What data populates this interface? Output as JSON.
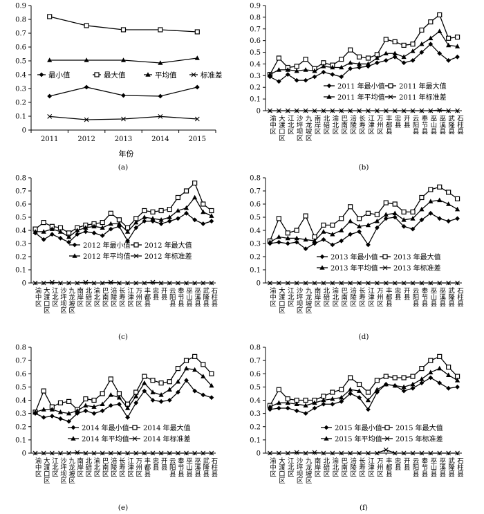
{
  "chart_data": [
    {
      "panel": "(a)",
      "type": "line",
      "xlabel": "年份",
      "ylabel": "",
      "ylim": [
        0,
        0.9
      ],
      "yticks": [
        "0",
        "0.1",
        "0.2",
        "0.3",
        "0.4",
        "0.5",
        "0.6",
        "0.7",
        "0.8",
        "0.9"
      ],
      "categories": [
        "2011",
        "2012",
        "2013",
        "2014",
        "2015"
      ],
      "legend_placement": "middle",
      "series": [
        {
          "name": "最小值",
          "marker": "diamond",
          "values": [
            0.245,
            0.31,
            0.25,
            0.245,
            0.31
          ]
        },
        {
          "name": "最大值",
          "marker": "square",
          "values": [
            0.82,
            0.755,
            0.725,
            0.725,
            0.71
          ]
        },
        {
          "name": "平均值",
          "marker": "triangle",
          "values": [
            0.505,
            0.505,
            0.505,
            0.485,
            0.52
          ]
        },
        {
          "name": "标准差",
          "marker": "x",
          "values": [
            0.098,
            0.075,
            0.08,
            0.098,
            0.08
          ]
        }
      ]
    },
    {
      "panel": "(b)",
      "type": "line",
      "ylim": [
        0,
        0.9
      ],
      "yticks": [
        "0",
        "0.1",
        "0.2",
        "0.3",
        "0.4",
        "0.5",
        "0.6",
        "0.7",
        "0.8",
        "0.9"
      ],
      "categories": [
        "渝中区",
        "大渡口区",
        "江北区",
        "沙坪坝区",
        "九龙坡区",
        "南岸区",
        "北碚区",
        "渝北区",
        "巴南区",
        "涪陵区",
        "长寿区",
        "江津区",
        "万州区",
        "丰都县",
        "忠县",
        "开县",
        "云阳县",
        "奉节县",
        "巫山县",
        "巫溪县",
        "武隆县",
        "石柱县"
      ],
      "legend_placement": "middle-right",
      "series": [
        {
          "name": "2011 年最小值",
          "marker": "diamond",
          "values": [
            0.29,
            0.25,
            0.31,
            0.26,
            0.26,
            0.29,
            0.33,
            0.31,
            0.29,
            0.36,
            0.37,
            0.38,
            0.41,
            0.43,
            0.46,
            0.41,
            0.43,
            0.5,
            0.57,
            0.49,
            0.43,
            0.46
          ]
        },
        {
          "name": "2011 年最大值",
          "marker": "square",
          "values": [
            0.31,
            0.45,
            0.37,
            0.38,
            0.44,
            0.36,
            0.41,
            0.39,
            0.44,
            0.52,
            0.46,
            0.45,
            0.48,
            0.61,
            0.59,
            0.56,
            0.57,
            0.69,
            0.76,
            0.82,
            0.62,
            0.63
          ]
        },
        {
          "name": "2011 年平均值",
          "marker": "triangle",
          "values": [
            0.31,
            0.35,
            0.35,
            0.34,
            0.35,
            0.34,
            0.38,
            0.37,
            0.37,
            0.41,
            0.4,
            0.4,
            0.45,
            0.49,
            0.49,
            0.46,
            0.51,
            0.57,
            0.62,
            0.68,
            0.56,
            0.55
          ]
        },
        {
          "name": "2011 年标准差",
          "marker": "x",
          "values": [
            0,
            0,
            0,
            0,
            0,
            0,
            0,
            0,
            0,
            0,
            0,
            0,
            0,
            0,
            0,
            0,
            0,
            0,
            0,
            0.005,
            0,
            0
          ]
        }
      ]
    },
    {
      "panel": "(c)",
      "type": "line",
      "ylim": [
        0,
        0.8
      ],
      "yticks": [
        "0",
        "0.1",
        "0.2",
        "0.3",
        "0.4",
        "0.5",
        "0.6",
        "0.7",
        "0.8"
      ],
      "categories": [
        "渝中区",
        "大渡口区",
        "江北区",
        "沙坪坝区",
        "九龙坡区",
        "南岸区",
        "北碚区",
        "渝北区",
        "巴南区",
        "涪陵区",
        "长寿区",
        "江津区",
        "万州区",
        "丰都县",
        "忠县",
        "开县",
        "云阳县",
        "奉节县",
        "巫山县",
        "巫溪县",
        "武隆县",
        "石柱县"
      ],
      "legend_placement": "middle-right",
      "series": [
        {
          "name": "2012 年最小值",
          "marker": "diamond",
          "values": [
            0.38,
            0.33,
            0.37,
            0.34,
            0.31,
            0.37,
            0.39,
            0.38,
            0.36,
            0.41,
            0.43,
            0.32,
            0.42,
            0.47,
            0.47,
            0.45,
            0.47,
            0.49,
            0.53,
            0.48,
            0.45,
            0.47
          ]
        },
        {
          "name": "2012 年最大值",
          "marker": "square",
          "values": [
            0.41,
            0.46,
            0.43,
            0.42,
            0.38,
            0.42,
            0.44,
            0.45,
            0.46,
            0.53,
            0.48,
            0.42,
            0.49,
            0.55,
            0.54,
            0.55,
            0.56,
            0.65,
            0.7,
            0.76,
            0.6,
            0.55
          ]
        },
        {
          "name": "2012 年平均值",
          "marker": "triangle",
          "values": [
            0.39,
            0.39,
            0.41,
            0.39,
            0.35,
            0.4,
            0.42,
            0.43,
            0.42,
            0.45,
            0.45,
            0.39,
            0.46,
            0.5,
            0.49,
            0.48,
            0.5,
            0.55,
            0.57,
            0.65,
            0.54,
            0.51
          ]
        },
        {
          "name": "2012 年标准差",
          "marker": "x",
          "values": [
            0,
            0,
            0.005,
            0,
            0,
            0,
            0.005,
            0,
            0,
            0.005,
            0,
            0,
            0,
            0,
            0.005,
            0,
            0,
            0,
            0,
            0,
            0,
            0
          ]
        }
      ]
    },
    {
      "panel": "(d)",
      "type": "line",
      "ylim": [
        0,
        0.8
      ],
      "yticks": [
        "0",
        "0.1",
        "0.2",
        "0.3",
        "0.4",
        "0.5",
        "0.6",
        "0.7",
        "0.8"
      ],
      "categories": [
        "渝中区",
        "大渡口区",
        "江北区",
        "沙坪坝区",
        "九龙坡区",
        "南岸区",
        "北碚区",
        "渝北区",
        "巴南区",
        "涪陵区",
        "长寿区",
        "江津区",
        "万州区",
        "丰都县",
        "忠县",
        "开县",
        "云阳县",
        "奉节县",
        "巫山县",
        "巫溪县",
        "武隆县",
        "石柱县"
      ],
      "legend_placement": "middle-right",
      "series": [
        {
          "name": "2013 年最小值",
          "marker": "diamond",
          "values": [
            0.3,
            0.31,
            0.3,
            0.31,
            0.26,
            0.3,
            0.33,
            0.29,
            0.32,
            0.37,
            0.39,
            0.29,
            0.42,
            0.49,
            0.5,
            0.43,
            0.41,
            0.48,
            0.53,
            0.49,
            0.47,
            0.49
          ]
        },
        {
          "name": "2013 年最大值",
          "marker": "square",
          "values": [
            0.32,
            0.49,
            0.38,
            0.4,
            0.51,
            0.35,
            0.44,
            0.44,
            0.49,
            0.58,
            0.49,
            0.53,
            0.52,
            0.61,
            0.6,
            0.54,
            0.54,
            0.65,
            0.71,
            0.73,
            0.69,
            0.64
          ]
        },
        {
          "name": "2013 年平均值",
          "marker": "triangle",
          "values": [
            0.31,
            0.35,
            0.34,
            0.34,
            0.33,
            0.32,
            0.39,
            0.37,
            0.4,
            0.47,
            0.43,
            0.44,
            0.47,
            0.52,
            0.53,
            0.48,
            0.49,
            0.56,
            0.62,
            0.63,
            0.6,
            0.56
          ]
        },
        {
          "name": "2013 年标准差",
          "marker": "x",
          "values": [
            0,
            0,
            0,
            0,
            0,
            0,
            0,
            0,
            0,
            0,
            0,
            0,
            0,
            0,
            0,
            0,
            0,
            0,
            0,
            0,
            0,
            0
          ]
        }
      ]
    },
    {
      "panel": "(e)",
      "type": "line",
      "ylim": [
        0,
        0.8
      ],
      "yticks": [
        "0",
        "0.1",
        "0.2",
        "0.3",
        "0.4",
        "0.5",
        "0.6",
        "0.7",
        "0.8"
      ],
      "categories": [
        "渝中区",
        "大渡口区",
        "江北区",
        "沙坪坝区",
        "九龙坡区",
        "南岸区",
        "北碚区",
        "渝北区",
        "巴南区",
        "涪陵区",
        "长寿区",
        "江津区",
        "万州区",
        "丰都县",
        "忠县",
        "开县",
        "云阳县",
        "奉节县",
        "巫山县",
        "巫溪县",
        "武隆县",
        "石柱县"
      ],
      "legend_placement": "bottom-middle",
      "series": [
        {
          "name": "2014 年最小值",
          "marker": "diamond",
          "values": [
            0.3,
            0.27,
            0.28,
            0.26,
            0.24,
            0.3,
            0.32,
            0.3,
            0.32,
            0.36,
            0.37,
            0.27,
            0.38,
            0.47,
            0.4,
            0.39,
            0.4,
            0.46,
            0.55,
            0.47,
            0.44,
            0.42
          ]
        },
        {
          "name": "2014 年最大值",
          "marker": "square",
          "values": [
            0.31,
            0.47,
            0.35,
            0.38,
            0.39,
            0.33,
            0.41,
            0.4,
            0.45,
            0.56,
            0.45,
            0.37,
            0.46,
            0.58,
            0.55,
            0.53,
            0.54,
            0.64,
            0.7,
            0.73,
            0.67,
            0.6
          ]
        },
        {
          "name": "2014 年平均值",
          "marker": "triangle",
          "values": [
            0.31,
            0.33,
            0.33,
            0.31,
            0.3,
            0.32,
            0.36,
            0.35,
            0.37,
            0.44,
            0.42,
            0.34,
            0.43,
            0.53,
            0.46,
            0.44,
            0.48,
            0.54,
            0.64,
            0.63,
            0.58,
            0.51
          ]
        },
        {
          "name": "2014 年标准差",
          "marker": "x",
          "values": [
            0,
            0,
            0,
            0,
            0,
            0.005,
            0,
            0,
            0,
            0,
            0,
            0,
            0,
            0,
            0,
            0,
            0,
            0,
            0,
            0,
            0,
            0
          ]
        }
      ]
    },
    {
      "panel": "(f)",
      "type": "line",
      "ylim": [
        0,
        0.8
      ],
      "yticks": [
        "0",
        "0.1",
        "0.2",
        "0.3",
        "0.4",
        "0.5",
        "0.6",
        "0.7",
        "0.8"
      ],
      "categories": [
        "渝中区",
        "大渡口区",
        "江北区",
        "沙坪坝区",
        "九龙坡区",
        "南岸区",
        "北碚区",
        "渝北区",
        "巴南区",
        "涪陵区",
        "长寿区",
        "江津区",
        "万州区",
        "丰都县",
        "忠县",
        "开县",
        "云阳县",
        "奉节县",
        "巫山县",
        "巫溪县",
        "武隆县",
        "石柱县"
      ],
      "legend_placement": "bottom-right",
      "series": [
        {
          "name": "2015 年最小值",
          "marker": "diamond",
          "values": [
            0.33,
            0.34,
            0.34,
            0.32,
            0.3,
            0.34,
            0.37,
            0.37,
            0.39,
            0.45,
            0.42,
            0.33,
            0.46,
            0.52,
            0.51,
            0.47,
            0.49,
            0.53,
            0.57,
            0.53,
            0.49,
            0.5
          ]
        },
        {
          "name": "2015 年最大值",
          "marker": "square",
          "values": [
            0.36,
            0.48,
            0.41,
            0.4,
            0.4,
            0.4,
            0.43,
            0.46,
            0.48,
            0.57,
            0.52,
            0.46,
            0.55,
            0.58,
            0.57,
            0.57,
            0.58,
            0.64,
            0.7,
            0.73,
            0.65,
            0.58
          ]
        },
        {
          "name": "2015 年平均值",
          "marker": "triangle",
          "values": [
            0.35,
            0.38,
            0.38,
            0.37,
            0.36,
            0.38,
            0.4,
            0.41,
            0.42,
            0.48,
            0.47,
            0.4,
            0.48,
            0.52,
            0.51,
            0.5,
            0.52,
            0.56,
            0.61,
            0.64,
            0.59,
            0.55
          ]
        },
        {
          "name": "2015 年标准差",
          "marker": "x",
          "values": [
            0,
            0,
            0,
            0.005,
            0,
            0.005,
            0,
            0,
            0,
            0,
            0,
            0,
            0,
            0.025,
            0,
            0,
            0,
            0,
            0,
            0,
            0,
            0
          ]
        }
      ]
    }
  ]
}
